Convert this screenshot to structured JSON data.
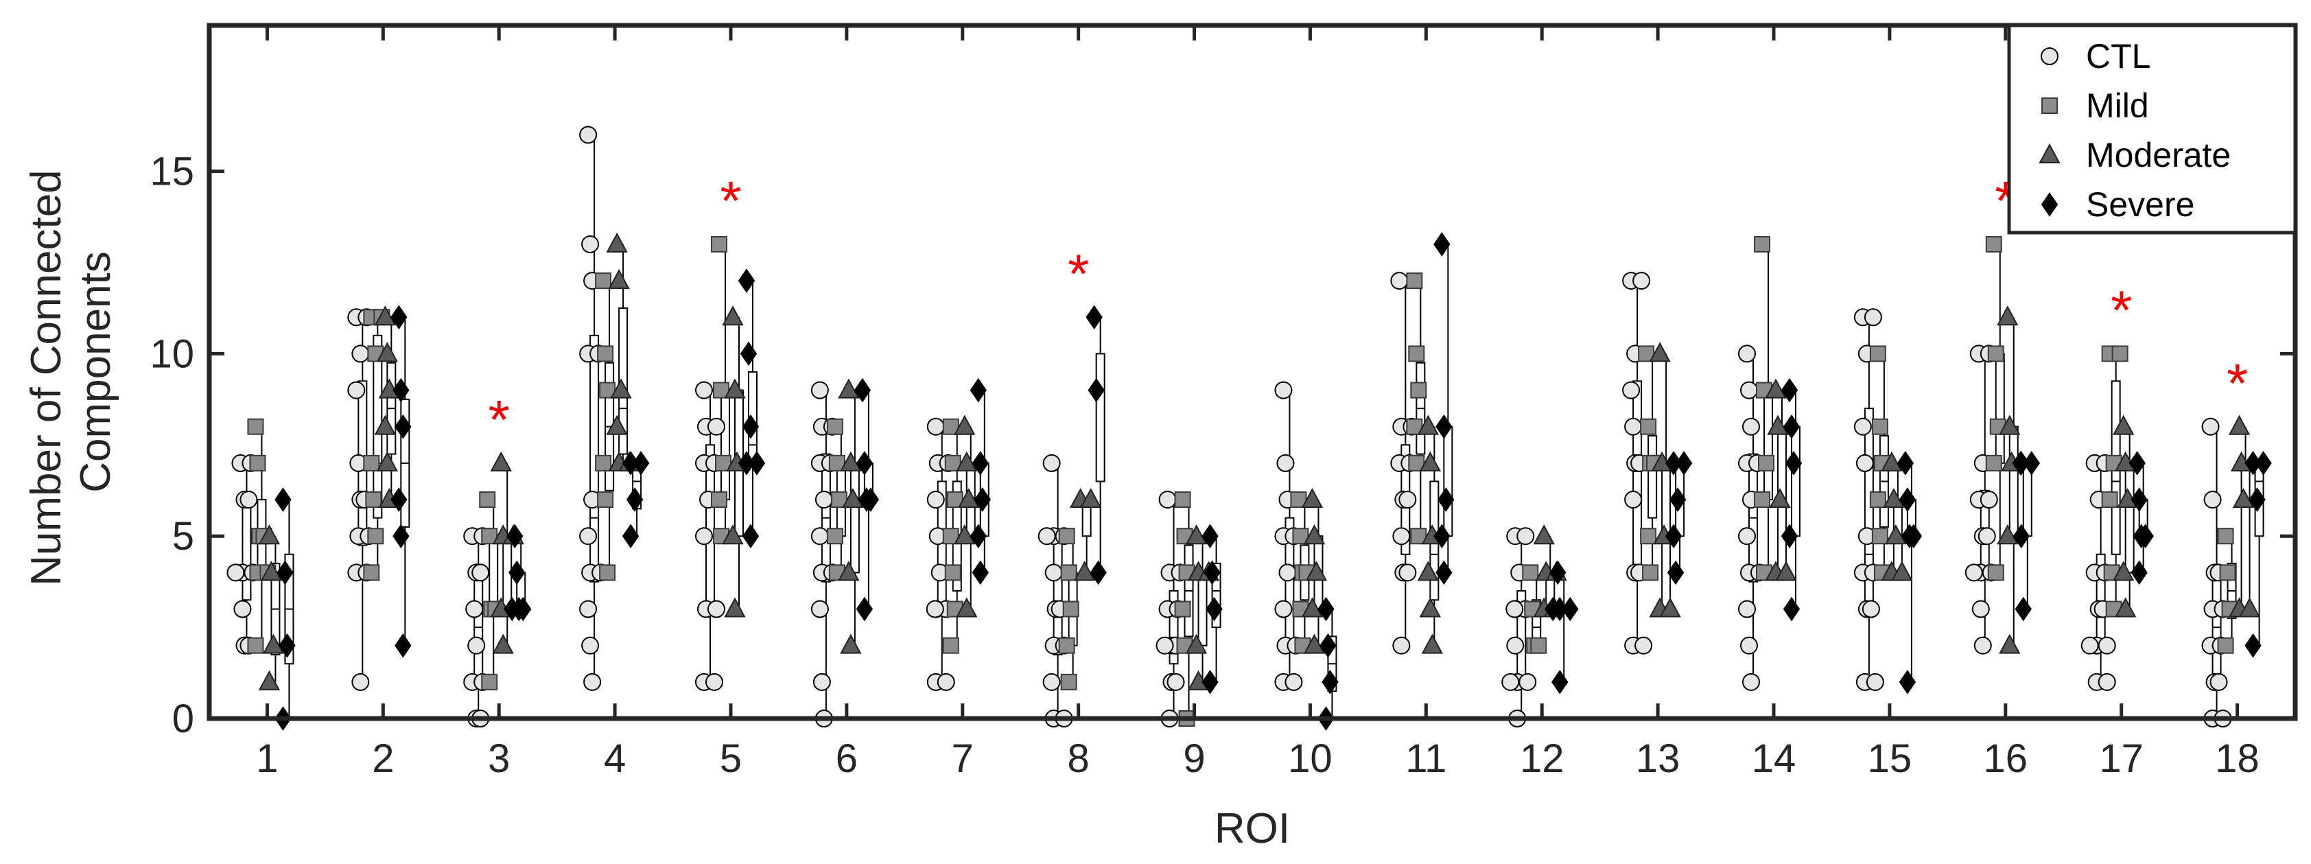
{
  "chart_data": {
    "type": "scatter",
    "title": "",
    "xlabel": "ROI",
    "ylabel": "Number of Connected Components",
    "ylabel_lines": [
      "Number of Connected",
      "Components"
    ],
    "ylim": [
      0,
      19
    ],
    "yticks": [
      0,
      5,
      10,
      15
    ],
    "categories": [
      "1",
      "2",
      "3",
      "4",
      "5",
      "6",
      "7",
      "8",
      "9",
      "10",
      "11",
      "12",
      "13",
      "14",
      "15",
      "16",
      "17",
      "18"
    ],
    "legend_position": "top-right",
    "significance_marker": "*",
    "significant_rois": [
      3,
      5,
      8,
      16,
      17,
      18
    ],
    "series": [
      {
        "name": "CTL",
        "marker": "circle",
        "color": "#e6e6e6",
        "values": [
          [
            7,
            7,
            6,
            6,
            4,
            4,
            4,
            3,
            2,
            2
          ],
          [
            11,
            11,
            10,
            9,
            7,
            6,
            6,
            5,
            5,
            4,
            4,
            1
          ],
          [
            5,
            5,
            4,
            4,
            3,
            2,
            1,
            1,
            0,
            0
          ],
          [
            16,
            13,
            12,
            10,
            10,
            6,
            5,
            4,
            4,
            3,
            2,
            1
          ],
          [
            9,
            8,
            8,
            7,
            7,
            6,
            5,
            3,
            3,
            1,
            1
          ],
          [
            9,
            8,
            8,
            7,
            7,
            6,
            5,
            4,
            4,
            3,
            1,
            0
          ],
          [
            8,
            7,
            7,
            6,
            5,
            4,
            3,
            3,
            3,
            1,
            1
          ],
          [
            7,
            5,
            5,
            5,
            4,
            3,
            3,
            2,
            2,
            1,
            0,
            0
          ],
          [
            6,
            4,
            4,
            3,
            3,
            2,
            2,
            2,
            1,
            1,
            0
          ],
          [
            9,
            7,
            6,
            5,
            5,
            4,
            3,
            2,
            2,
            1,
            1
          ],
          [
            12,
            8,
            8,
            7,
            7,
            6,
            6,
            5,
            4,
            4,
            2
          ],
          [
            5,
            5,
            4,
            3,
            3,
            3,
            2,
            1,
            1,
            1,
            0
          ],
          [
            12,
            12,
            10,
            9,
            8,
            7,
            7,
            6,
            4,
            4,
            2,
            2
          ],
          [
            10,
            9,
            8,
            7,
            7,
            6,
            5,
            4,
            4,
            3,
            2,
            1
          ],
          [
            11,
            11,
            10,
            8,
            7,
            5,
            4,
            4,
            3,
            3,
            1,
            1
          ],
          [
            10,
            10,
            7,
            6,
            6,
            5,
            5,
            4,
            4,
            4,
            3,
            2
          ],
          [
            7,
            7,
            6,
            4,
            4,
            3,
            3,
            2,
            2,
            2,
            1,
            1
          ],
          [
            8,
            6,
            4,
            4,
            3,
            3,
            2,
            2,
            1,
            1,
            0,
            0
          ]
        ]
      },
      {
        "name": "Mild",
        "marker": "square",
        "color": "#8c8c8c",
        "values": [
          [
            8,
            7,
            5,
            5,
            4,
            4,
            2
          ],
          [
            11,
            11,
            10,
            7,
            6,
            5,
            4
          ],
          [
            6,
            5,
            3,
            3,
            1
          ],
          [
            12,
            10,
            9,
            7,
            6,
            4
          ],
          [
            13,
            9,
            7,
            6,
            5
          ],
          [
            8,
            7,
            6,
            5,
            4
          ],
          [
            8,
            7,
            6,
            5,
            4,
            3,
            2
          ],
          [
            5,
            4,
            3,
            2,
            1
          ],
          [
            6,
            5,
            4,
            3,
            2,
            0
          ],
          [
            6,
            5,
            4,
            4,
            3,
            2
          ],
          [
            12,
            10,
            9,
            8,
            7,
            5
          ],
          [
            4,
            3,
            2,
            2
          ],
          [
            10,
            8,
            7,
            7,
            5,
            4
          ],
          [
            13,
            9,
            7,
            6,
            4
          ],
          [
            10,
            8,
            7,
            6,
            5,
            4
          ],
          [
            13,
            10,
            8,
            7,
            4
          ],
          [
            10,
            10,
            7,
            6,
            4,
            3
          ],
          [
            5,
            4,
            3,
            2
          ]
        ]
      },
      {
        "name": "Moderate",
        "marker": "triangle",
        "color": "#595959",
        "values": [
          [
            5,
            4,
            2,
            1
          ],
          [
            11,
            10,
            9,
            8,
            7,
            6
          ],
          [
            7,
            5,
            5,
            3,
            2
          ],
          [
            13,
            12,
            9,
            8,
            7,
            7
          ],
          [
            11,
            9,
            7,
            5,
            3
          ],
          [
            9,
            7,
            6,
            4,
            2
          ],
          [
            8,
            7,
            6,
            5,
            3
          ],
          [
            6,
            6,
            4
          ],
          [
            5,
            4,
            4,
            2,
            1
          ],
          [
            6,
            5,
            4,
            3,
            2
          ],
          [
            8,
            7,
            5,
            4,
            3,
            2
          ],
          [
            5,
            4,
            4,
            3,
            3
          ],
          [
            10,
            7,
            5,
            3,
            3
          ],
          [
            9,
            8,
            6,
            4,
            4
          ],
          [
            7,
            6,
            5,
            4,
            4
          ],
          [
            11,
            8,
            7,
            5,
            2
          ],
          [
            8,
            7,
            6,
            4,
            3
          ],
          [
            8,
            7,
            6,
            3,
            3
          ]
        ]
      },
      {
        "name": "Severe",
        "marker": "diamond",
        "color": "#000000",
        "values": [
          [
            6,
            4,
            2,
            0
          ],
          [
            11,
            9,
            8,
            6,
            5,
            2
          ],
          [
            5,
            4,
            3,
            3,
            3
          ],
          [
            7,
            7,
            6,
            5
          ],
          [
            12,
            10,
            8,
            7,
            7,
            5
          ],
          [
            9,
            7,
            6,
            6,
            3
          ],
          [
            9,
            7,
            6,
            5,
            4
          ],
          [
            11,
            9,
            4
          ],
          [
            5,
            4,
            3,
            1
          ],
          [
            3,
            2,
            1,
            0
          ],
          [
            13,
            8,
            6,
            5,
            4
          ],
          [
            4,
            3,
            3,
            3,
            1
          ],
          [
            7,
            7,
            6,
            5,
            4
          ],
          [
            9,
            8,
            7,
            5,
            3
          ],
          [
            7,
            6,
            5,
            5,
            1
          ],
          [
            7,
            7,
            7,
            5,
            3
          ],
          [
            7,
            6,
            5,
            5,
            4
          ],
          [
            7,
            7,
            6,
            2
          ]
        ]
      }
    ]
  }
}
